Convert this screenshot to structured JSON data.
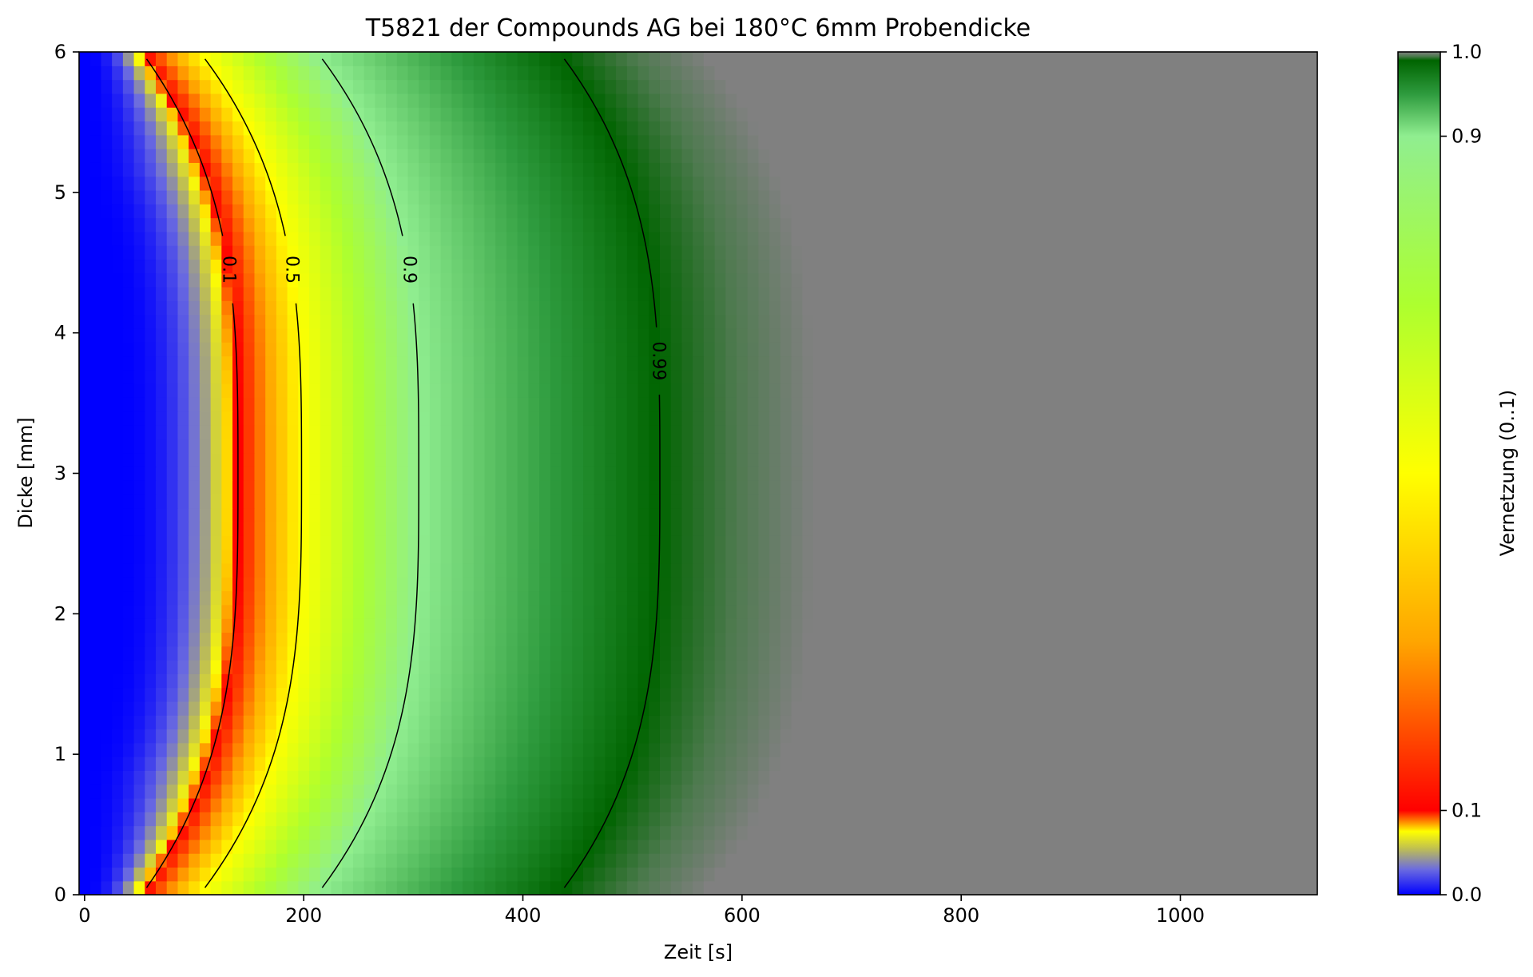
{
  "chart_data": {
    "type": "heatmap",
    "title": "T5821 der Compounds AG bei 180°C 6mm Probendicke",
    "xlabel": "Zeit [s]",
    "ylabel": "Dicke [mm]",
    "xlim": [
      -5,
      1125
    ],
    "ylim": [
      0,
      6
    ],
    "x_ticks": [
      0,
      200,
      400,
      600,
      800,
      1000
    ],
    "x_tick_labels": [
      "0",
      "200",
      "400",
      "600",
      "800",
      "1000"
    ],
    "y_ticks": [
      0,
      1,
      2,
      3,
      4,
      5,
      6
    ],
    "y_tick_labels": [
      "0",
      "1",
      "2",
      "3",
      "4",
      "5",
      "6"
    ],
    "grid": false,
    "colorbar": {
      "label": "Vernetzung (0..1)",
      "range": [
        0,
        1
      ],
      "ticks": [
        0.0,
        0.1,
        0.9,
        1.0
      ],
      "tick_labels": [
        "0.0",
        "0.1",
        "0.9",
        "1.0"
      ],
      "color_stops": [
        {
          "value": 0.0,
          "color": "#0000ff"
        },
        {
          "value": 0.03,
          "color": "#6b6be0"
        },
        {
          "value": 0.055,
          "color": "#c0c050"
        },
        {
          "value": 0.075,
          "color": "#ffff00"
        },
        {
          "value": 0.1,
          "color": "#ff0000"
        },
        {
          "value": 0.3,
          "color": "#ffa500"
        },
        {
          "value": 0.5,
          "color": "#ffff00"
        },
        {
          "value": 0.7,
          "color": "#adff2f"
        },
        {
          "value": 0.9,
          "color": "#90ee90"
        },
        {
          "value": 0.95,
          "color": "#2e9b3e"
        },
        {
          "value": 0.99,
          "color": "#006400"
        },
        {
          "value": 0.995,
          "color": "#4e7a4f"
        },
        {
          "value": 1.0,
          "color": "#808080"
        }
      ]
    },
    "contours": [
      {
        "level": 0.1,
        "label": "0.1",
        "t_edge": 52,
        "t_center": 140
      },
      {
        "level": 0.5,
        "label": "0.5",
        "t_edge": 105,
        "t_center": 198
      },
      {
        "level": 0.9,
        "label": "0.9",
        "t_edge": 212,
        "t_center": 305
      },
      {
        "level": 0.99,
        "label": "0.99",
        "t_edge": 433,
        "t_center": 525
      }
    ],
    "gray_boundary": {
      "level": 1.0,
      "t_edge": 565,
      "t_center": 665
    }
  }
}
